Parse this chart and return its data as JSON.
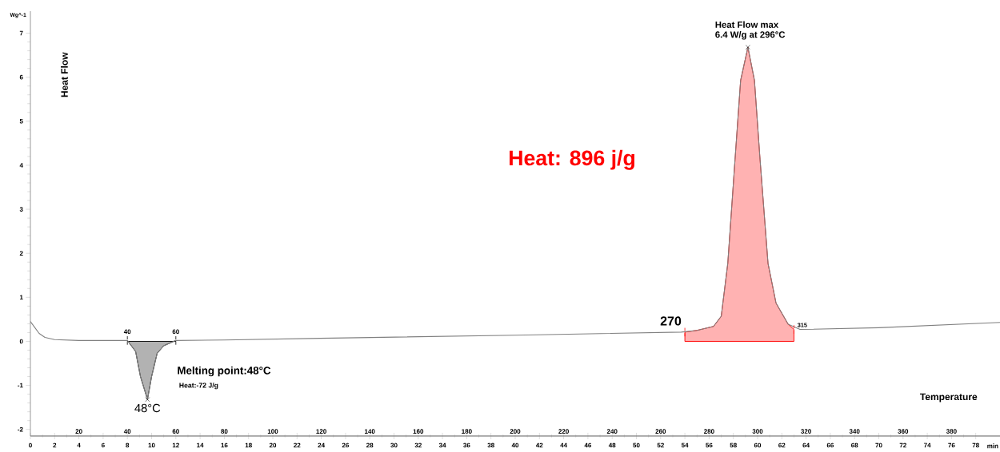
{
  "chart_data": {
    "type": "line",
    "xlabel": "Temperature",
    "ylabel": "Heat Flow",
    "x2label": "min",
    "xlim": [
      0,
      400
    ],
    "xticks": [
      20,
      40,
      60,
      80,
      100,
      120,
      140,
      160,
      180,
      200,
      220,
      240,
      260,
      280,
      300,
      320,
      340,
      360,
      380
    ],
    "x2lim": [
      0,
      80
    ],
    "x2ticks": [
      0,
      2,
      4,
      6,
      8,
      10,
      12,
      14,
      16,
      18,
      20,
      22,
      24,
      26,
      28,
      30,
      32,
      34,
      36,
      38,
      40,
      42,
      44,
      46,
      48,
      50,
      52,
      54,
      56,
      58,
      60,
      62,
      64,
      66,
      68,
      70,
      72,
      74,
      76,
      78
    ],
    "ylim": [
      -2.15,
      7.5
    ],
    "yticks": [
      -2,
      -1,
      0,
      1,
      2,
      3,
      4,
      5,
      6,
      7
    ],
    "series": [
      {
        "color": "#808080",
        "x": [
          0,
          2,
          3.6,
          6,
          10,
          20,
          40,
          43.4,
          45.4,
          48.3,
          50,
          52.3,
          55,
          60,
          80,
          119.5,
          200,
          268.5,
          275,
          281.8,
          285,
          287.7,
          290.7,
          293,
          296,
          298.7,
          301,
          304.3,
          307.6,
          312.6,
          317.5,
          350,
          400
        ],
        "values": [
          0.45,
          0.3,
          0.18,
          0.09,
          0.04,
          0.02,
          0.02,
          -0.23,
          -0.8,
          -1.32,
          -0.8,
          -0.27,
          -0.1,
          0.02,
          0.03,
          0.07,
          0.14,
          0.21,
          0.25,
          0.34,
          0.57,
          1.77,
          4.14,
          5.93,
          6.68,
          5.93,
          4.14,
          1.77,
          0.87,
          0.39,
          0.27,
          0.31,
          0.43
        ]
      },
      {
        "type": "area",
        "color": "#000000",
        "x": [
          40,
          43.4,
          45.4,
          48.3,
          50,
          52.3,
          55,
          60
        ],
        "values": [
          0.02,
          -0.23,
          -0.8,
          -1.32,
          -0.8,
          -0.27,
          -0.1,
          0.02
        ]
      },
      {
        "type": "area",
        "color": "#ff0000",
        "x": [
          270,
          275,
          281.8,
          285,
          287.7,
          290.7,
          293,
          296,
          298.7,
          301,
          304.3,
          307.6,
          312.6,
          315
        ],
        "values": [
          0.21,
          0.25,
          0.34,
          0.57,
          1.77,
          4.14,
          5.93,
          6.68,
          5.93,
          4.14,
          1.77,
          0.87,
          0.39,
          0.27
        ]
      }
    ],
    "annotations": [
      "Wg^-1",
      {
        "text": "40",
        "x": 40,
        "y": 0.02
      },
      {
        "text": "60",
        "x": 60,
        "y": 0.02
      },
      {
        "text": "48°C",
        "x": 48.3,
        "y": -1.32
      },
      "Melting point:48°C",
      "Heat:-72 J/g",
      {
        "text": "270",
        "x": 270,
        "y": 0.21
      },
      {
        "text": "315",
        "x": 315,
        "y": 0.27
      },
      {
        "text": "Heat Flow max",
        "x": 296,
        "y": 6.68
      },
      {
        "text": "6.4 W/g at 296°C",
        "x": 296,
        "y": 6.68
      },
      "Heat: 896 j/g"
    ]
  }
}
